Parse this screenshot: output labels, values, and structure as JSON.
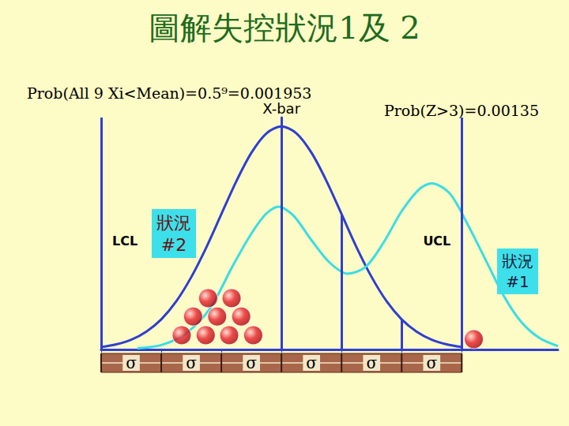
{
  "chart_data": {
    "type": "line",
    "title": "圖解失控狀況1及 2",
    "xlim": [
      -3,
      4.6
    ],
    "ylim": [
      0,
      1.04
    ],
    "xticks": [
      -3,
      -2,
      -1,
      0,
      1,
      2,
      3
    ],
    "tick_labels": false,
    "grid": false,
    "sigma_label": "σ",
    "series": [
      {
        "type": "line",
        "color": "#2f3fd0",
        "x": [
          -3,
          -2.75,
          -2.5,
          -2.25,
          -2,
          -1.75,
          -1.5,
          -1.25,
          -1,
          -0.75,
          -0.5,
          -0.25,
          0,
          0.25,
          0.5,
          0.75,
          1,
          1.25,
          1.5,
          1.75,
          2,
          2.25,
          2.5,
          2.75,
          3
        ],
        "values": [
          0.011,
          0.023,
          0.044,
          0.08,
          0.135,
          0.216,
          0.325,
          0.458,
          0.607,
          0.755,
          0.882,
          0.969,
          1.0,
          0.969,
          0.882,
          0.755,
          0.607,
          0.458,
          0.325,
          0.216,
          0.135,
          0.08,
          0.044,
          0.023,
          0.011
        ]
      },
      {
        "type": "line",
        "color": "#38dde6",
        "x": [
          -2.4,
          -2.0,
          -1.6,
          -1.2,
          -0.8,
          -0.5,
          -0.25,
          -0.05,
          0.2,
          0.5,
          0.8,
          1.1,
          1.4,
          1.7,
          2.0,
          2.3,
          2.5,
          2.8,
          3.1,
          3.4,
          3.7,
          4.0,
          4.3,
          4.6
        ],
        "values": [
          0.005,
          0.02,
          0.07,
          0.18,
          0.38,
          0.52,
          0.61,
          0.64,
          0.6,
          0.49,
          0.39,
          0.34,
          0.37,
          0.48,
          0.62,
          0.72,
          0.745,
          0.7,
          0.56,
          0.4,
          0.24,
          0.12,
          0.05,
          0.015
        ]
      },
      {
        "type": "scatter",
        "color": "#e8202a",
        "marker": "circle",
        "x": [
          -1.66,
          -1.26,
          -0.87,
          -0.47,
          -1.47,
          -1.07,
          -0.67,
          -1.22,
          -0.83,
          3.2
        ],
        "values": [
          0.064,
          0.064,
          0.064,
          0.064,
          0.148,
          0.148,
          0.148,
          0.23,
          0.23,
          0.046
        ]
      }
    ],
    "vertical_lines": [
      {
        "label": "LCL",
        "x": -3,
        "y": 1.04
      },
      {
        "label": "X-bar",
        "x": 0,
        "y": 1.04
      },
      {
        "label": "UCL",
        "x": 3,
        "y": 1.04
      },
      {
        "x": 1,
        "y": 0.607
      },
      {
        "x": 2,
        "y": 0.135
      }
    ],
    "annotations": [
      {
        "text": "Prob(All 9 Xi<Mean)=0.5⁹=0.001953"
      },
      {
        "text": "Prob(Z>3)=0.00135"
      },
      {
        "text": "狀況 #2"
      },
      {
        "text": "狀況 #1"
      }
    ]
  }
}
